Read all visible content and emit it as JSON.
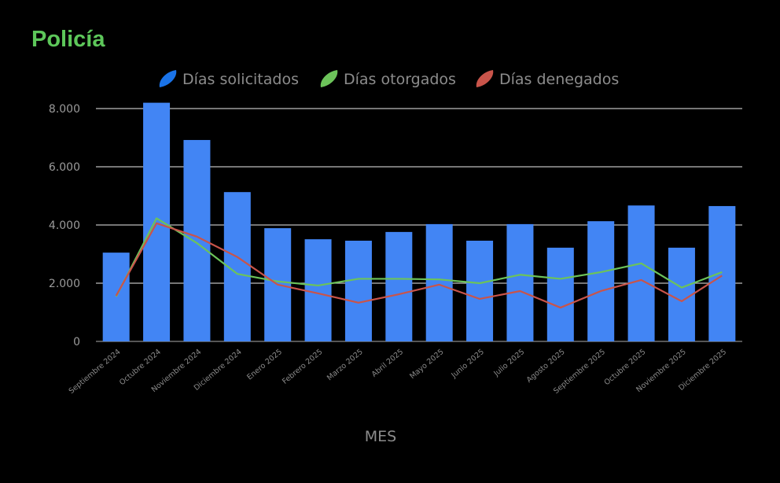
{
  "chart_data": {
    "type": "bar",
    "title": "Policía",
    "xlabel": "MES",
    "ylabel": "",
    "ylim": [
      0,
      8000
    ],
    "yticks": [
      0,
      2000,
      4000,
      6000,
      8000
    ],
    "ytick_labels": [
      "0",
      "2.000",
      "4.000",
      "6.000",
      "8.000"
    ],
    "grid": true,
    "legend_position": "top",
    "categories": [
      "Septiembre 2024",
      "Octubre 2024",
      "Noviembre 2024",
      "Diciembre 2024",
      "Enero 2025",
      "Febrero 2025",
      "Marzo 2025",
      "Abril 2025",
      "Mayo 2025",
      "Junio 2025",
      "Julio 2025",
      "Agosto 2025",
      "Septiembre 2025",
      "Octubre 2025",
      "Noviembre 2025",
      "Diciembre 2025"
    ],
    "series": [
      {
        "name": "Días solicitados",
        "kind": "bar",
        "color": "#4285f4",
        "values": [
          3050,
          8200,
          6920,
          5130,
          3890,
          3510,
          3460,
          3760,
          4030,
          3460,
          4030,
          3220,
          4130,
          4670,
          3220,
          4650
        ]
      },
      {
        "name": "Días otorgados",
        "kind": "line",
        "color": "#6cc35a",
        "values": [
          1540,
          4230,
          3380,
          2320,
          2060,
          1920,
          2150,
          2150,
          2130,
          2000,
          2290,
          2150,
          2380,
          2680,
          1850,
          2380
        ]
      },
      {
        "name": "Días denegados",
        "kind": "line",
        "color": "#c9544a",
        "values": [
          1570,
          4060,
          3600,
          2900,
          1950,
          1650,
          1330,
          1620,
          1950,
          1460,
          1730,
          1160,
          1730,
          2110,
          1380,
          2260
        ]
      }
    ]
  }
}
